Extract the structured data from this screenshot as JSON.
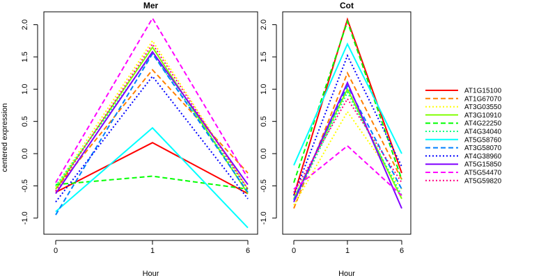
{
  "chart_data": {
    "type": "line",
    "ylabel": "centered expression",
    "xlabel": "Hour",
    "x_categories": [
      "0",
      "1",
      "6"
    ],
    "y_ticks": [
      -1.0,
      -0.5,
      0.0,
      0.5,
      1.0,
      1.5,
      2.0
    ],
    "y_tick_labels": [
      "-1.0",
      "-0.5",
      "0.0",
      "0.5",
      "1.0",
      "1.5",
      "2.0"
    ],
    "ylim": [
      -1.25,
      2.2
    ],
    "legend_position": "right",
    "series_styles": [
      {
        "name": "AT1G15100",
        "color": "#ff0000",
        "dash": "solid"
      },
      {
        "name": "AT1G67070",
        "color": "#ff8000",
        "dash": "dashed"
      },
      {
        "name": "AT3G03550",
        "color": "#ffff00",
        "dash": "dotted"
      },
      {
        "name": "AT3G10910",
        "color": "#80ff00",
        "dash": "solid"
      },
      {
        "name": "AT4G22250",
        "color": "#00ff00",
        "dash": "dashed"
      },
      {
        "name": "AT4G34040",
        "color": "#00ff80",
        "dash": "dotted"
      },
      {
        "name": "AT5G58760",
        "color": "#00ffff",
        "dash": "solid"
      },
      {
        "name": "AT3G58070",
        "color": "#0080ff",
        "dash": "dashed"
      },
      {
        "name": "AT4G38960",
        "color": "#0000ff",
        "dash": "dotted"
      },
      {
        "name": "AT5G15850",
        "color": "#8000ff",
        "dash": "solid"
      },
      {
        "name": "AT5G54470",
        "color": "#ff00ff",
        "dash": "dashed"
      },
      {
        "name": "AT5G59820",
        "color": "#ff0080",
        "dash": "dotted"
      }
    ],
    "panels": [
      {
        "title": "Mer",
        "series": [
          {
            "name": "AT1G15100",
            "values": [
              -0.6,
              0.17,
              -0.62
            ]
          },
          {
            "name": "AT1G67070",
            "values": [
              -0.55,
              1.3,
              -0.3
            ]
          },
          {
            "name": "AT3G03550",
            "values": [
              -0.52,
              1.75,
              -0.55
            ]
          },
          {
            "name": "AT3G10910",
            "values": [
              -0.55,
              1.65,
              -0.62
            ]
          },
          {
            "name": "AT4G22250",
            "values": [
              -0.48,
              -0.35,
              -0.55
            ]
          },
          {
            "name": "AT4G34040",
            "values": [
              -0.5,
              1.55,
              -0.55
            ]
          },
          {
            "name": "AT5G58760",
            "values": [
              -0.9,
              0.4,
              -1.15
            ]
          },
          {
            "name": "AT3G58070",
            "values": [
              -0.95,
              1.55,
              -0.6
            ]
          },
          {
            "name": "AT4G38960",
            "values": [
              -0.75,
              1.2,
              -0.7
            ]
          },
          {
            "name": "AT5G15850",
            "values": [
              -0.62,
              1.58,
              -0.48
            ]
          },
          {
            "name": "AT5G54470",
            "values": [
              -0.45,
              2.1,
              -0.38
            ]
          },
          {
            "name": "AT5G59820",
            "values": [
              -0.58,
              1.7,
              -0.55
            ]
          }
        ]
      },
      {
        "title": "Cot",
        "series": [
          {
            "name": "AT1G15100",
            "values": [
              -0.65,
              2.08,
              -0.3
            ]
          },
          {
            "name": "AT1G67070",
            "values": [
              -0.85,
              1.25,
              -0.4
            ]
          },
          {
            "name": "AT3G03550",
            "values": [
              -0.8,
              0.65,
              -0.55
            ]
          },
          {
            "name": "AT3G10910",
            "values": [
              -0.7,
              1.0,
              -0.7
            ]
          },
          {
            "name": "AT4G22250",
            "values": [
              -0.45,
              2.05,
              -0.4
            ]
          },
          {
            "name": "AT4G34040",
            "values": [
              -0.75,
              0.95,
              -0.65
            ]
          },
          {
            "name": "AT5G58760",
            "values": [
              -0.18,
              1.7,
              0.0
            ]
          },
          {
            "name": "AT3G58070",
            "values": [
              -0.72,
              1.05,
              -0.55
            ]
          },
          {
            "name": "AT4G38960",
            "values": [
              -0.65,
              1.52,
              -0.2
            ]
          },
          {
            "name": "AT5G15850",
            "values": [
              -0.75,
              1.1,
              -0.85
            ]
          },
          {
            "name": "AT5G54470",
            "values": [
              -0.55,
              0.12,
              -0.65
            ]
          },
          {
            "name": "AT5G59820",
            "values": [
              -0.6,
              0.85,
              -0.45
            ]
          }
        ]
      }
    ]
  }
}
